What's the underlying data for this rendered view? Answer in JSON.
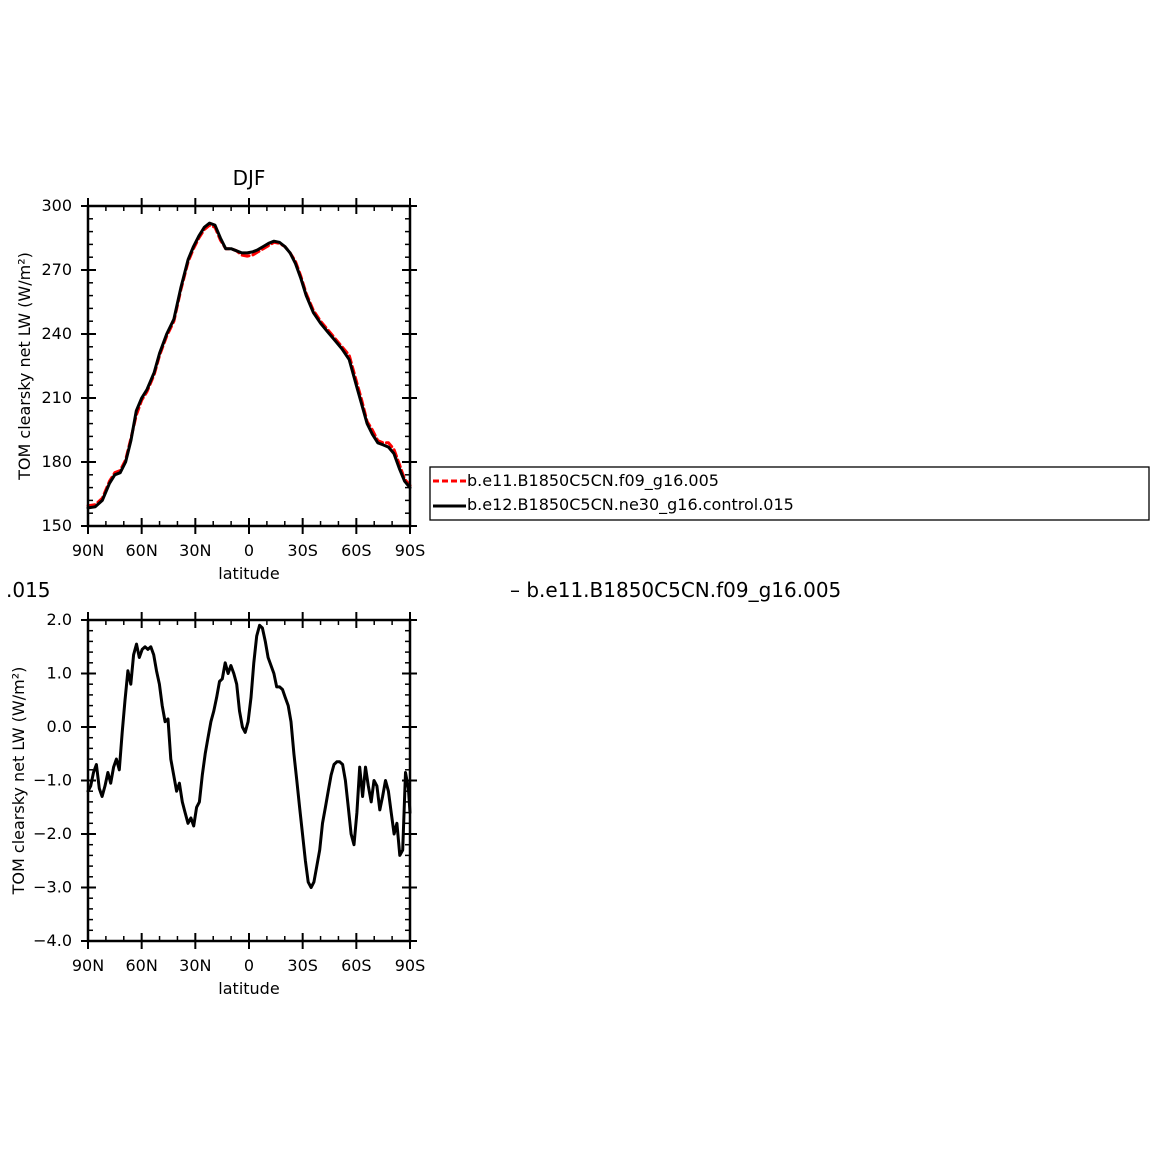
{
  "fragments": {
    "left": ".015",
    "right": "– b.e11.B1850C5CN.f09_g16.005"
  },
  "legend": [
    {
      "label": "b.e11.B1850C5CN.f09_g16.005",
      "color": "#ff0000",
      "dash": true
    },
    {
      "label": "b.e12.B1850C5CN.ne30_g16.control.015",
      "color": "#000000",
      "dash": false
    }
  ],
  "chart_data": [
    {
      "type": "line",
      "title": "DJF",
      "xlabel": "latitude",
      "ylabel": "TOM clearsky net LW (W/m²)",
      "xlim": [
        90,
        -90
      ],
      "ylim": [
        150,
        300
      ],
      "xticks": [
        90,
        60,
        30,
        0,
        -30,
        -60,
        -90
      ],
      "xtick_labels": [
        "90N",
        "60N",
        "30N",
        "0",
        "30S",
        "60S",
        "90S"
      ],
      "yticks": [
        150,
        180,
        210,
        240,
        270,
        300
      ],
      "ytick_labels": [
        "150",
        "180",
        "210",
        "240",
        "270",
        "300"
      ],
      "series": [
        {
          "name": "b.e12.B1850C5CN.ne30_g16.control.015",
          "color": "#000000",
          "dash": false,
          "x": [
            90,
            86,
            82,
            78,
            75,
            72,
            69,
            66,
            63,
            60,
            57,
            53,
            50,
            46,
            42,
            38,
            34,
            31,
            28,
            25,
            22,
            19,
            16,
            13,
            10,
            7,
            4,
            1,
            -2,
            -5,
            -8,
            -11,
            -14,
            -17,
            -20,
            -23,
            -26,
            -29,
            -32,
            -36,
            -40,
            -44,
            -48,
            -52,
            -56,
            -60,
            -63,
            -66,
            -69,
            -72,
            -75,
            -78,
            -81,
            -84,
            -87,
            -90
          ],
          "y": [
            158.5,
            159,
            162,
            170,
            174,
            175,
            180,
            190,
            204,
            210,
            214,
            222,
            231,
            240,
            247,
            262,
            275,
            281,
            286,
            290,
            292,
            291,
            285,
            280,
            280,
            279,
            278,
            278,
            278.5,
            279.5,
            281,
            282.5,
            283.5,
            283,
            281,
            278,
            273,
            266,
            258,
            250,
            245,
            241,
            237,
            233,
            228,
            216,
            207,
            198,
            193,
            189,
            188,
            187,
            184,
            177,
            171,
            168
          ]
        },
        {
          "name": "b.e11.B1850C5CN.f09_g16.005",
          "color": "#ff0000",
          "dash": true,
          "x": [
            90,
            86,
            82,
            78,
            75,
            72,
            69,
            66,
            63,
            60,
            57,
            53,
            50,
            46,
            42,
            38,
            34,
            31,
            28,
            25,
            22,
            19,
            16,
            13,
            10,
            7,
            4,
            1,
            -2,
            -5,
            -8,
            -11,
            -14,
            -17,
            -20,
            -23,
            -26,
            -29,
            -32,
            -36,
            -40,
            -44,
            -48,
            -52,
            -56,
            -60,
            -63,
            -66,
            -69,
            -72,
            -75,
            -78,
            -81,
            -84,
            -87,
            -90
          ],
          "y": [
            159.5,
            160,
            163,
            171,
            175,
            176,
            181,
            191,
            202,
            209,
            213,
            221,
            230,
            239,
            246,
            261,
            274,
            280,
            285,
            289,
            291,
            290,
            284,
            280,
            280,
            279,
            277,
            276.5,
            277,
            278.5,
            280,
            281.5,
            283,
            282.5,
            281,
            278,
            274,
            267,
            259,
            251,
            246,
            242,
            238,
            234,
            230,
            218,
            209,
            199,
            195,
            190,
            189,
            189,
            186,
            179,
            172,
            169
          ]
        }
      ]
    },
    {
      "type": "line",
      "title": "",
      "xlabel": "latitude",
      "ylabel": "TOM clearsky net LW (W/m²)",
      "xlim": [
        90,
        -90
      ],
      "ylim": [
        -4,
        2
      ],
      "xticks": [
        90,
        60,
        30,
        0,
        -30,
        -60,
        -90
      ],
      "xtick_labels": [
        "90N",
        "60N",
        "30N",
        "0",
        "30S",
        "60S",
        "90S"
      ],
      "yticks": [
        -4,
        -3,
        -2,
        -1,
        0,
        1,
        2
      ],
      "ytick_labels": [
        "−4.0",
        "−3.0",
        "−2.0",
        "−1.0",
        "0.0",
        "1.0",
        "2.0"
      ],
      "series": [
        {
          "color": "#000000",
          "dash": false,
          "x": [
            90,
            88.5,
            86.9,
            85.3,
            83.7,
            82.1,
            80.5,
            78.9,
            77.3,
            75.7,
            74.1,
            72.5,
            70.9,
            69.3,
            67.7,
            66.1,
            64.5,
            62.9,
            61.3,
            59.7,
            58.1,
            56.5,
            54.9,
            53.3,
            51.7,
            50.1,
            48.5,
            46.9,
            45.3,
            43.7,
            42.1,
            40.5,
            38.9,
            37.3,
            35.7,
            34.1,
            32.5,
            30.9,
            29.3,
            27.7,
            26.1,
            24.5,
            22.9,
            21.3,
            19.7,
            18.1,
            16.5,
            14.9,
            13.3,
            11.7,
            10.1,
            8.5,
            6.9,
            5.3,
            3.7,
            2.1,
            0.5,
            -1.1,
            -2.7,
            -4.3,
            -5.9,
            -7.5,
            -9.1,
            -10.7,
            -12.3,
            -13.9,
            -15.5,
            -17.1,
            -18.7,
            -20.3,
            -21.9,
            -23.5,
            -25.1,
            -26.7,
            -28.3,
            -29.9,
            -31.5,
            -33.1,
            -34.7,
            -36.3,
            -37.9,
            -39.5,
            -41.1,
            -42.7,
            -44.3,
            -45.9,
            -47.5,
            -49.1,
            -50.7,
            -52.3,
            -53.9,
            -55.5,
            -57.1,
            -58.7,
            -60.3,
            -61.9,
            -63.5,
            -65.1,
            -66.7,
            -68.3,
            -69.9,
            -71.5,
            -73.1,
            -74.7,
            -76.3,
            -77.9,
            -79.5,
            -81.1,
            -82.7,
            -84.3,
            -85.9,
            -87.5,
            -89.1,
            -90
          ],
          "y": [
            -1.2,
            -1.1,
            -0.85,
            -0.7,
            -1.15,
            -1.3,
            -1.1,
            -0.85,
            -1.05,
            -0.75,
            -0.6,
            -0.8,
            -0.1,
            0.5,
            1.05,
            0.8,
            1.35,
            1.55,
            1.3,
            1.45,
            1.5,
            1.45,
            1.5,
            1.35,
            1.05,
            0.8,
            0.4,
            0.1,
            0.15,
            -0.6,
            -0.9,
            -1.2,
            -1.05,
            -1.4,
            -1.6,
            -1.8,
            -1.7,
            -1.85,
            -1.5,
            -1.4,
            -0.9,
            -0.5,
            -0.2,
            0.1,
            0.3,
            0.55,
            0.85,
            0.9,
            1.2,
            1.0,
            1.15,
            1.0,
            0.8,
            0.3,
            0.0,
            -0.1,
            0.1,
            0.55,
            1.2,
            1.7,
            1.9,
            1.85,
            1.6,
            1.3,
            1.15,
            1.0,
            0.75,
            0.75,
            0.7,
            0.55,
            0.4,
            0.1,
            -0.5,
            -1.0,
            -1.5,
            -2.0,
            -2.5,
            -2.9,
            -3.0,
            -2.9,
            -2.6,
            -2.3,
            -1.8,
            -1.5,
            -1.2,
            -0.9,
            -0.7,
            -0.65,
            -0.65,
            -0.7,
            -1.0,
            -1.5,
            -2.0,
            -2.2,
            -1.6,
            -0.75,
            -1.3,
            -0.75,
            -1.1,
            -1.4,
            -1.0,
            -1.1,
            -1.55,
            -1.3,
            -1.0,
            -1.2,
            -1.6,
            -2.0,
            -1.8,
            -2.4,
            -2.3,
            -0.85,
            -1.15,
            -1.6
          ]
        }
      ]
    }
  ]
}
